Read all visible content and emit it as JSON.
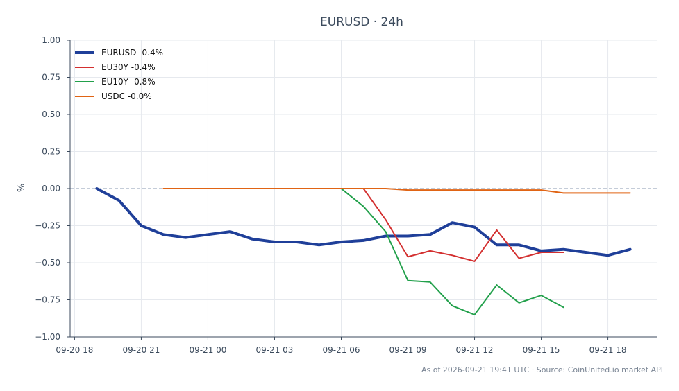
{
  "chart_data": {
    "type": "line",
    "title": "EURUSD · 24h",
    "ylabel": "%",
    "xlabel": "",
    "ylim": [
      -1.0,
      1.0
    ],
    "yticks": [
      1.0,
      0.75,
      0.5,
      0.25,
      0.0,
      -0.25,
      -0.5,
      -0.75,
      -1.0
    ],
    "ytick_labels": [
      "1.00",
      "0.75",
      "0.50",
      "0.25",
      "0.00",
      "−0.25",
      "−0.50",
      "−0.75",
      "−1.00"
    ],
    "xlim": [
      "2026-09-20 17:48",
      "2026-09-21 20:12"
    ],
    "xticks": [
      "2026-09-20 18:00",
      "2026-09-20 21:00",
      "2026-09-21 00:00",
      "2026-09-21 03:00",
      "2026-09-21 06:00",
      "2026-09-21 09:00",
      "2026-09-21 12:00",
      "2026-09-21 15:00",
      "2026-09-21 18:00"
    ],
    "xtick_labels": [
      "09-20 18",
      "09-20 21",
      "09-21 00",
      "09-21 03",
      "09-21 06",
      "09-21 09",
      "09-21 12",
      "09-21 15",
      "09-21 18"
    ],
    "grid": true,
    "zero_line": true,
    "legend_position": "top-left",
    "series": [
      {
        "name": "EURUSD -0.4%",
        "color": "#1f3f99",
        "width": 4,
        "x": [
          "2026-09-20 19:00",
          "2026-09-20 20:00",
          "2026-09-20 21:00",
          "2026-09-20 22:00",
          "2026-09-20 23:00",
          "2026-09-21 00:00",
          "2026-09-21 01:00",
          "2026-09-21 02:00",
          "2026-09-21 03:00",
          "2026-09-21 04:00",
          "2026-09-21 05:00",
          "2026-09-21 06:00",
          "2026-09-21 07:00",
          "2026-09-21 08:00",
          "2026-09-21 09:00",
          "2026-09-21 10:00",
          "2026-09-21 11:00",
          "2026-09-21 12:00",
          "2026-09-21 13:00",
          "2026-09-21 14:00",
          "2026-09-21 15:00",
          "2026-09-21 16:00",
          "2026-09-21 17:00",
          "2026-09-21 18:00",
          "2026-09-21 19:00"
        ],
        "y": [
          0.0,
          -0.08,
          -0.25,
          -0.31,
          -0.33,
          -0.31,
          -0.29,
          -0.34,
          -0.36,
          -0.36,
          -0.38,
          -0.36,
          -0.35,
          -0.32,
          -0.32,
          -0.31,
          -0.23,
          -0.26,
          -0.38,
          -0.38,
          -0.42,
          -0.41,
          -0.43,
          -0.45,
          -0.41
        ]
      },
      {
        "name": "EU30Y -0.4%",
        "color": "#d32f2f",
        "width": 2,
        "x": [
          "2026-09-21 07:00",
          "2026-09-21 08:00",
          "2026-09-21 09:00",
          "2026-09-21 10:00",
          "2026-09-21 11:00",
          "2026-09-21 12:00",
          "2026-09-21 13:00",
          "2026-09-21 14:00",
          "2026-09-21 15:00",
          "2026-09-21 16:00"
        ],
        "y": [
          0.0,
          -0.21,
          -0.46,
          -0.42,
          -0.45,
          -0.49,
          -0.28,
          -0.47,
          -0.43,
          -0.43
        ]
      },
      {
        "name": "EU10Y -0.8%",
        "color": "#22a04b",
        "width": 2,
        "x": [
          "2026-09-21 06:00",
          "2026-09-21 07:00",
          "2026-09-21 08:00",
          "2026-09-21 09:00",
          "2026-09-21 10:00",
          "2026-09-21 11:00",
          "2026-09-21 12:00",
          "2026-09-21 13:00",
          "2026-09-21 14:00",
          "2026-09-21 15:00",
          "2026-09-21 16:00"
        ],
        "y": [
          0.0,
          -0.12,
          -0.29,
          -0.62,
          -0.63,
          -0.79,
          -0.85,
          -0.65,
          -0.77,
          -0.72,
          -0.8
        ]
      },
      {
        "name": "USDC -0.0%",
        "color": "#e06414",
        "width": 2,
        "x": [
          "2026-09-20 22:00",
          "2026-09-21 00:00",
          "2026-09-21 02:00",
          "2026-09-21 04:00",
          "2026-09-21 06:00",
          "2026-09-21 08:00",
          "2026-09-21 09:00",
          "2026-09-21 12:00",
          "2026-09-21 15:00",
          "2026-09-21 16:00",
          "2026-09-21 18:00",
          "2026-09-21 19:00"
        ],
        "y": [
          0.0,
          0.0,
          0.0,
          0.0,
          0.0,
          0.0,
          -0.01,
          -0.01,
          -0.01,
          -0.03,
          -0.03,
          -0.03
        ]
      }
    ],
    "footer": "As of 2026-09-21 19:41 UTC · Source: CoinUnited.io market API"
  }
}
